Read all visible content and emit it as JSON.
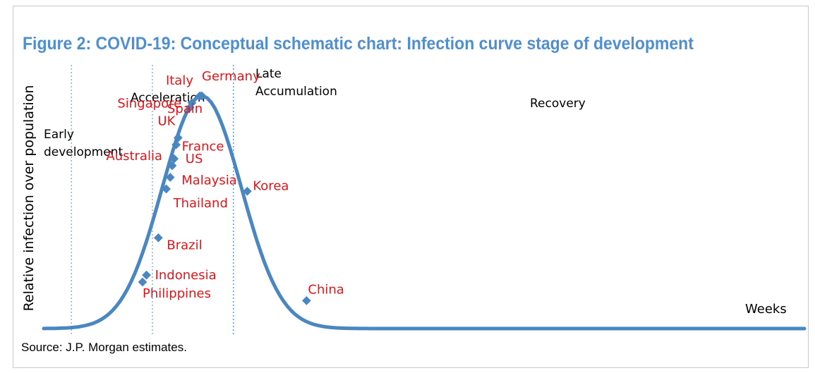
{
  "title": "Figure 2: COVID-19: Conceptual schematic chart: Infection curve stage of development",
  "ylabel": "Relative infection over population",
  "xlabel": "Weeks",
  "source": "Source: J.P. Morgan estimates.",
  "colors": {
    "title": "#4f8fd0",
    "curve": "#4a86c0",
    "labels": "#e0161b",
    "divider": "#6b9fd0"
  },
  "stages": [
    {
      "key": "early",
      "lines": [
        "Early",
        "development"
      ]
    },
    {
      "key": "acceleration",
      "lines": [
        "Acceleration"
      ]
    },
    {
      "key": "late",
      "lines": [
        "Late",
        "Accumulation"
      ]
    },
    {
      "key": "recovery",
      "lines": [
        "Recovery"
      ]
    }
  ],
  "chart_data": {
    "type": "line",
    "title": "Figure 2: COVID-19: Conceptual schematic chart: Infection curve stage of development",
    "xlabel": "Weeks",
    "ylabel": "Relative infection over population",
    "ticks": "none",
    "grid": false,
    "curve": "bell-shaped",
    "stage_names": [
      "Early development",
      "Acceleration",
      "Late Accumulation",
      "Recovery"
    ],
    "stage_boundaries_x": [
      0.14,
      0.55,
      0.96
    ],
    "series": [
      {
        "points": [
          {
            "label": "Philippines",
            "x": 0.5,
            "y": 0.2
          },
          {
            "label": "Indonesia",
            "x": 0.52,
            "y": 0.23
          },
          {
            "label": "Brazil",
            "x": 0.58,
            "y": 0.39
          },
          {
            "label": "Thailand",
            "x": 0.62,
            "y": 0.6
          },
          {
            "label": "Malaysia",
            "x": 0.64,
            "y": 0.65
          },
          {
            "label": "Australia",
            "x": 0.65,
            "y": 0.7
          },
          {
            "label": "US",
            "x": 0.66,
            "y": 0.73
          },
          {
            "label": "France",
            "x": 0.67,
            "y": 0.79
          },
          {
            "label": "UK",
            "x": 0.68,
            "y": 0.82
          },
          {
            "label": "Singapore",
            "x": 0.74,
            "y": 0.95
          },
          {
            "label": "Italy",
            "x": 0.75,
            "y": 0.97
          },
          {
            "label": "Spain",
            "x": 0.79,
            "y": 1.0
          },
          {
            "label": "Germany",
            "x": 0.8,
            "y": 1.0
          },
          {
            "label": "Korea",
            "x": 1.03,
            "y": 0.59
          },
          {
            "label": "China",
            "x": 1.33,
            "y": 0.12
          }
        ]
      }
    ]
  }
}
